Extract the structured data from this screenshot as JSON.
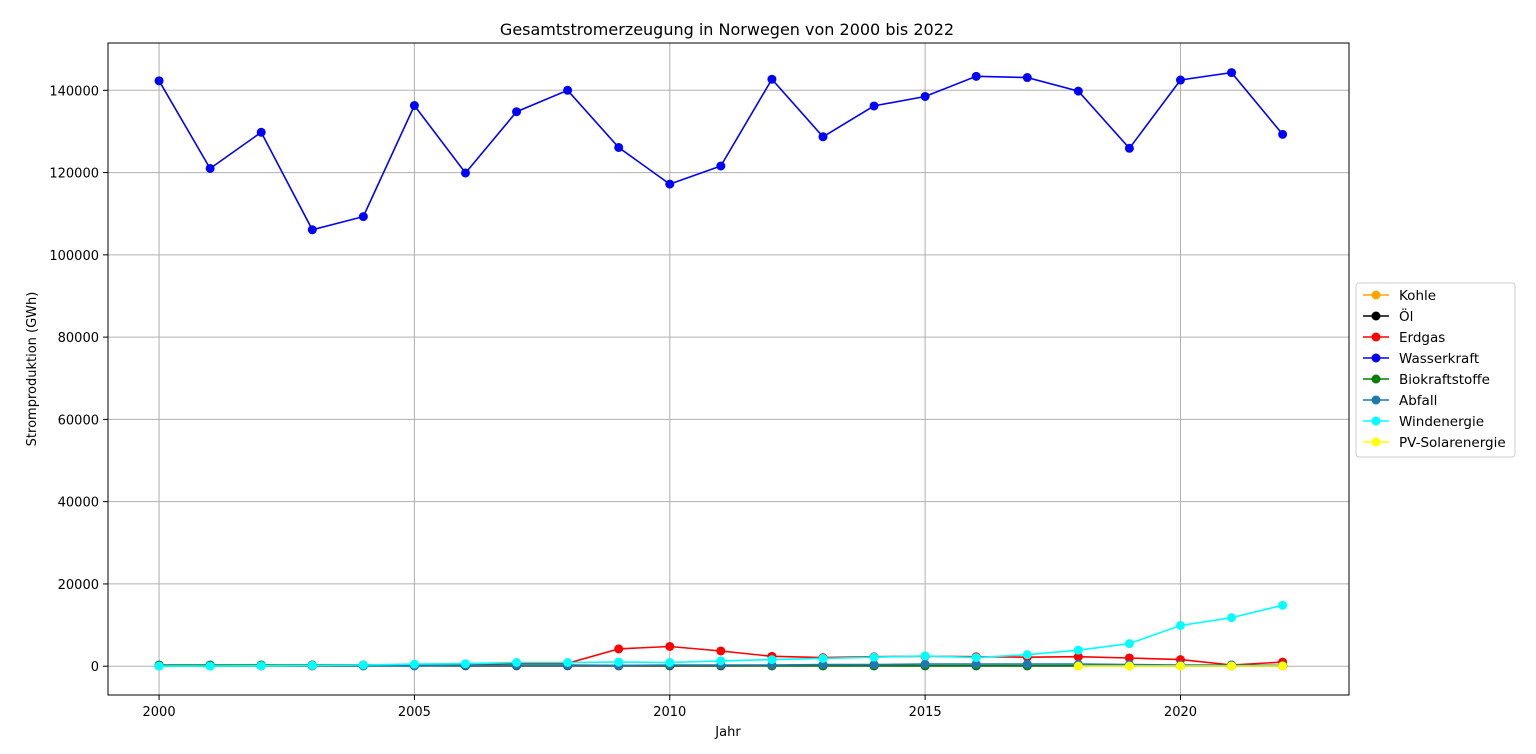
{
  "chart_data": {
    "type": "line",
    "title": "Gesamtstromerzeugung in Norwegen von 2000 bis 2022",
    "xlabel": "Jahr",
    "ylabel": "Stromproduktion (GWh)",
    "xlim": [
      1999,
      2023.3
    ],
    "ylim": [
      -7000,
      151500
    ],
    "xticks": [
      2000,
      2005,
      2010,
      2015,
      2020
    ],
    "yticks": [
      0,
      20000,
      40000,
      60000,
      80000,
      100000,
      120000,
      140000
    ],
    "grid": true,
    "legend_position": "center-right",
    "x": [
      2000,
      2001,
      2002,
      2003,
      2004,
      2005,
      2006,
      2007,
      2008,
      2009,
      2010,
      2011,
      2012,
      2013,
      2014,
      2015,
      2016,
      2017,
      2018,
      2019,
      2020,
      2021,
      2022
    ],
    "series": [
      {
        "name": "Kohle",
        "color": "#ffa500",
        "x": [
          2000,
          2001,
          2002,
          2003,
          2004,
          2005,
          2006,
          2007,
          2008,
          2009,
          2010,
          2011,
          2012,
          2013,
          2014,
          2015,
          2016,
          2017,
          2018,
          2019,
          2020,
          2021,
          2022
        ],
        "values": [
          150,
          150,
          150,
          150,
          150,
          150,
          150,
          150,
          150,
          100,
          100,
          100,
          100,
          100,
          100,
          100,
          100,
          100,
          100,
          100,
          100,
          100,
          100
        ]
      },
      {
        "name": "Öl",
        "color": "#000000",
        "x": [
          2000,
          2001,
          2002,
          2003,
          2004,
          2005,
          2006,
          2007,
          2008,
          2009,
          2010,
          2011,
          2012,
          2013,
          2014,
          2015,
          2016,
          2017,
          2018,
          2019,
          2020,
          2021,
          2022
        ],
        "values": [
          100,
          100,
          100,
          100,
          100,
          100,
          100,
          100,
          100,
          100,
          100,
          100,
          100,
          100,
          100,
          100,
          100,
          100,
          100,
          100,
          100,
          100,
          100
        ]
      },
      {
        "name": "Erdgas",
        "color": "#ff0000",
        "x": [
          2000,
          2001,
          2002,
          2003,
          2004,
          2005,
          2006,
          2007,
          2008,
          2009,
          2010,
          2011,
          2012,
          2013,
          2014,
          2015,
          2016,
          2017,
          2018,
          2019,
          2020,
          2021,
          2022
        ],
        "values": [
          200,
          200,
          200,
          300,
          300,
          300,
          400,
          700,
          700,
          4200,
          4800,
          3700,
          2400,
          2100,
          2300,
          2400,
          2300,
          2200,
          2300,
          2000,
          1600,
          300,
          1000
        ]
      },
      {
        "name": "Wasserkraft",
        "color": "#0000ff",
        "x": [
          2000,
          2001,
          2002,
          2003,
          2004,
          2005,
          2006,
          2007,
          2008,
          2009,
          2010,
          2011,
          2012,
          2013,
          2014,
          2015,
          2016,
          2017,
          2018,
          2019,
          2020,
          2021,
          2022
        ],
        "values": [
          142300,
          121000,
          129800,
          106100,
          109300,
          136300,
          119900,
          134800,
          140000,
          126100,
          117200,
          121600,
          142700,
          128700,
          136200,
          138500,
          143400,
          143100,
          139800,
          125900,
          142500,
          144300,
          129300
        ]
      },
      {
        "name": "Biokraftstoffe",
        "color": "#008000",
        "x": [
          2000,
          2001,
          2002,
          2003,
          2004,
          2005,
          2006,
          2007,
          2008,
          2009,
          2010,
          2011,
          2012,
          2013,
          2014,
          2015,
          2016,
          2017,
          2018,
          2019,
          2020,
          2021,
          2022
        ],
        "values": [
          300,
          300,
          300,
          300,
          300,
          300,
          300,
          300,
          300,
          200,
          200,
          200,
          100,
          100,
          100,
          100,
          100,
          100,
          100,
          100,
          100,
          100,
          100
        ]
      },
      {
        "name": "Abfall",
        "color": "#1f77b4",
        "x": [
          2000,
          2001,
          2002,
          2003,
          2004,
          2005,
          2006,
          2007,
          2008,
          2009,
          2010,
          2011,
          2012,
          2013,
          2014,
          2015,
          2016,
          2017,
          2018,
          2019,
          2020,
          2021,
          2022
        ],
        "values": [
          100,
          100,
          100,
          100,
          100,
          100,
          200,
          200,
          200,
          200,
          300,
          300,
          300,
          400,
          400,
          500,
          500,
          500,
          500,
          400,
          300,
          300,
          200
        ]
      },
      {
        "name": "Windenergie",
        "color": "#00ffff",
        "x": [
          2000,
          2001,
          2002,
          2003,
          2004,
          2005,
          2006,
          2007,
          2008,
          2009,
          2010,
          2011,
          2012,
          2013,
          2014,
          2015,
          2016,
          2017,
          2018,
          2019,
          2020,
          2021,
          2022
        ],
        "values": [
          30,
          30,
          100,
          200,
          300,
          500,
          600,
          900,
          900,
          1000,
          900,
          1300,
          1600,
          1900,
          2200,
          2500,
          2100,
          2800,
          3900,
          5500,
          9900,
          11800,
          14800
        ]
      },
      {
        "name": "PV-Solarenergie",
        "color": "#ffff00",
        "x": [
          2018,
          2019,
          2020,
          2021,
          2022
        ],
        "values": [
          20,
          30,
          40,
          50,
          60
        ]
      }
    ]
  }
}
